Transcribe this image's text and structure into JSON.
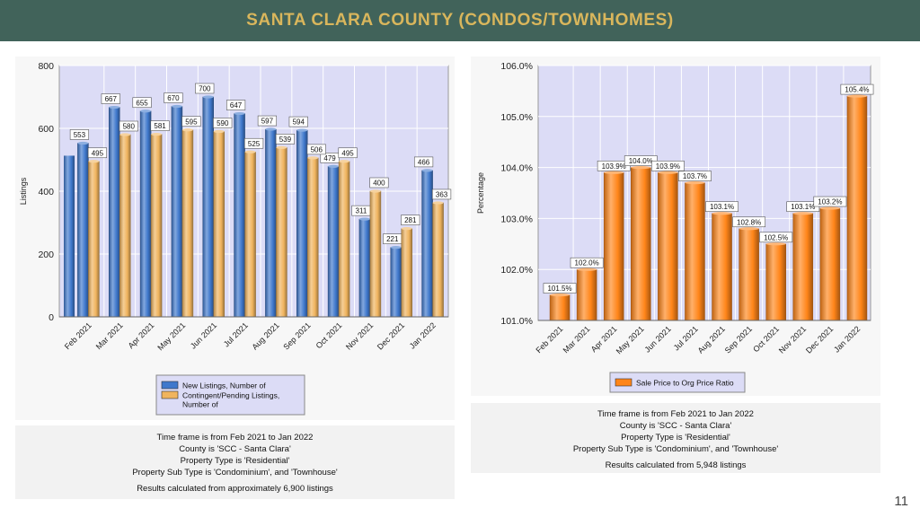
{
  "page": {
    "title": "SANTA CLARA COUNTY (CONDOS/TOWNHOMES)",
    "page_number": "11"
  },
  "chart_data": [
    {
      "type": "bar",
      "title": "",
      "xlabel": "",
      "ylabel": "Listings",
      "ylim": [
        0,
        800
      ],
      "yticks": [
        "0",
        "200",
        "400",
        "600",
        "800"
      ],
      "categories": [
        "Feb 2021",
        "Mar 2021",
        "Apr 2021",
        "May 2021",
        "Jun 2021",
        "Jul 2021",
        "Aug 2021",
        "Sep 2021",
        "Oct 2021",
        "Nov 2021",
        "Dec 2021",
        "Jan 2022"
      ],
      "legend_placement": "bottom-center",
      "grid": true,
      "series": [
        {
          "name": "New Listings, Number of",
          "color": "#3f78cc",
          "values": [
            553,
            667,
            655,
            670,
            700,
            647,
            597,
            594,
            479,
            311,
            221,
            466
          ]
        },
        {
          "name": "Contingent/Pending Listings, Number of",
          "color": "#f0b45e",
          "values": [
            495,
            580,
            581,
            595,
            590,
            525,
            539,
            506,
            495,
            400,
            281,
            363
          ]
        }
      ],
      "legend_labels": [
        [
          "New Listings, Number of"
        ],
        [
          "Contingent/Pending Listings,",
          "Number of"
        ]
      ],
      "data_labels": {
        "s0": [
          "553",
          "667",
          "655",
          "670",
          "700",
          "647",
          "597",
          "594",
          "479",
          "311",
          "221",
          "466"
        ],
        "s1": [
          "495",
          "580",
          "581",
          "595",
          "590",
          "525",
          "539",
          "506",
          "495",
          "400",
          "281",
          "363"
        ]
      },
      "notes": {
        "timeframe": "Time frame is from Feb 2021 to Jan 2022",
        "county": "County is 'SCC - Santa Clara'",
        "property_type": "Property Type is 'Residential'",
        "property_sub_type": "Property Sub Type is 'Condominium', and 'Townhouse'",
        "results": "Results calculated from approximately 6,900 listings"
      }
    },
    {
      "type": "bar",
      "title": "",
      "xlabel": "",
      "ylabel": "Percentage",
      "ylim": [
        101.0,
        106.0
      ],
      "yticks": [
        "101.0%",
        "102.0%",
        "103.0%",
        "104.0%",
        "105.0%",
        "106.0%"
      ],
      "categories": [
        "Feb 2021",
        "Mar 2021",
        "Apr 2021",
        "May 2021",
        "Jun 2021",
        "Jul 2021",
        "Aug 2021",
        "Sep 2021",
        "Oct 2021",
        "Nov 2021",
        "Dec 2021",
        "Jan 2022"
      ],
      "legend_placement": "bottom-center",
      "grid": true,
      "series": [
        {
          "name": "Sale Price to Org Price Ratio",
          "color": "#ff8519",
          "values": [
            101.5,
            102.0,
            103.9,
            104.0,
            103.9,
            103.7,
            103.1,
            102.8,
            102.5,
            103.1,
            103.2,
            105.4
          ]
        }
      ],
      "legend_labels": [
        [
          "Sale Price to Org Price Ratio"
        ]
      ],
      "data_labels": {
        "s0": [
          "101.5%",
          "102.0%",
          "103.9%",
          "104.0%",
          "103.9%",
          "103.7%",
          "103.1%",
          "102.8%",
          "102.5%",
          "103.1%",
          "103.2%",
          "105.4%"
        ]
      },
      "notes": {
        "timeframe": "Time frame is from Feb 2021 to Jan 2022",
        "county": "County is 'SCC - Santa Clara'",
        "property_type": "Property Type is 'Residential'",
        "property_sub_type": "Property Sub Type is 'Condominium', and 'Townhouse'",
        "results": "Results calculated from 5,948 listings"
      }
    }
  ]
}
